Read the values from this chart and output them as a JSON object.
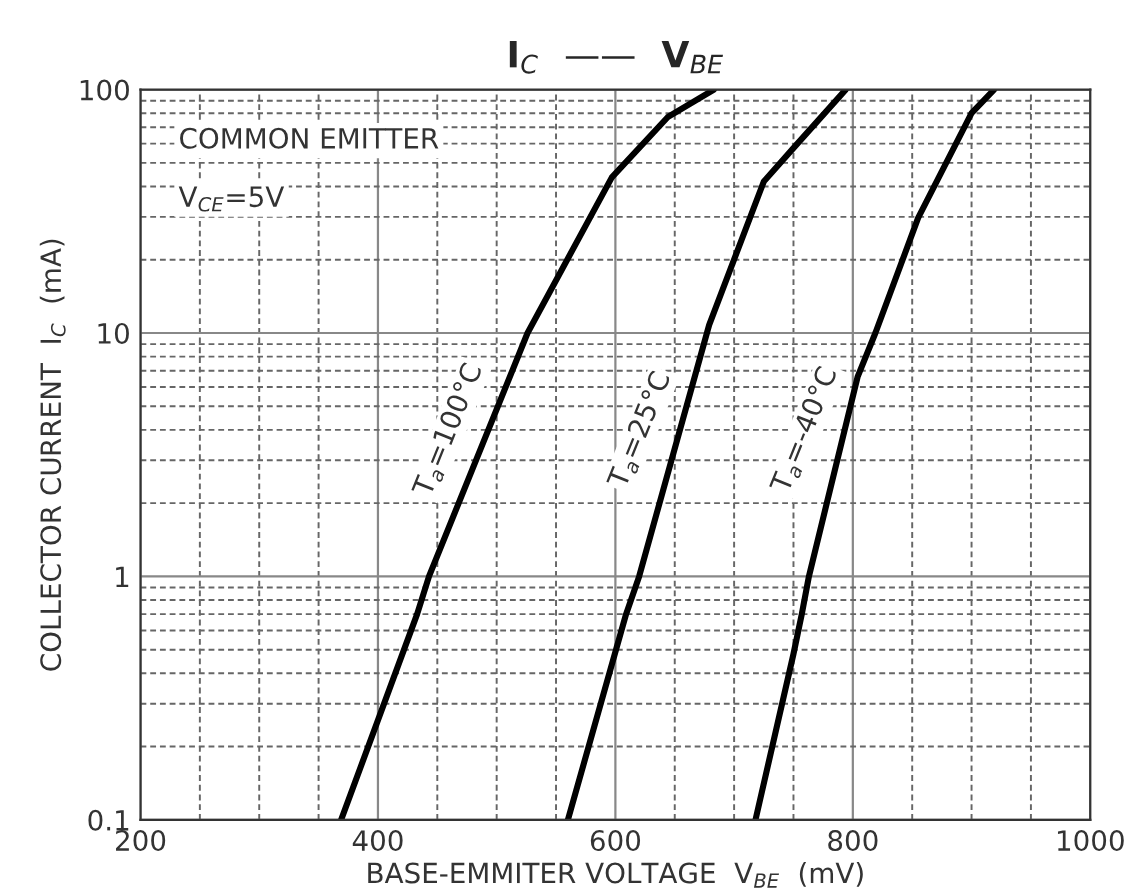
{
  "chart_data": {
    "type": "line",
    "title": "I$_{C}$  ——  V$_{BE}$",
    "xlabel": "BASE-EMMITER VOLTAGE  V$_{BE}$  (mV)",
    "ylabel": "COLLECTOR CURRENT  I$_{C}$  (mA)",
    "log": "y",
    "xlim": [
      200,
      1000
    ],
    "xticks": [
      200,
      400,
      600,
      800,
      1000
    ],
    "ylim": [
      0.1,
      100
    ],
    "yticks": [
      0.1,
      1,
      10,
      100
    ],
    "grid": true,
    "legend": false,
    "marker": "none",
    "line_style": "solid",
    "annotations": [
      "COMMON EMITTER",
      "V$_{CE}$=5V"
    ],
    "series": [
      {
        "name": "T$_{a}$=100°C",
        "color": "#000000",
        "x": [
          369,
          433,
          443,
          526,
          597,
          644,
          683
        ],
        "values": [
          0.1,
          0.7,
          1,
          10,
          43.6,
          77,
          100
        ]
      },
      {
        "name": "T$_{a}$=25°C",
        "color": "#000000",
        "x": [
          560,
          609,
          620,
          679,
          725,
          752,
          794
        ],
        "values": [
          0.1,
          0.7,
          1,
          10.8,
          41.9,
          59,
          100
        ]
      },
      {
        "name": "T$_{a}$=-40°C",
        "color": "#000000",
        "x": [
          718,
          750,
          757,
          763,
          804,
          819,
          855,
          900,
          919
        ],
        "values": [
          0.1,
          0.48,
          0.7,
          1,
          6.6,
          10,
          29.7,
          80,
          100
        ]
      }
    ]
  }
}
